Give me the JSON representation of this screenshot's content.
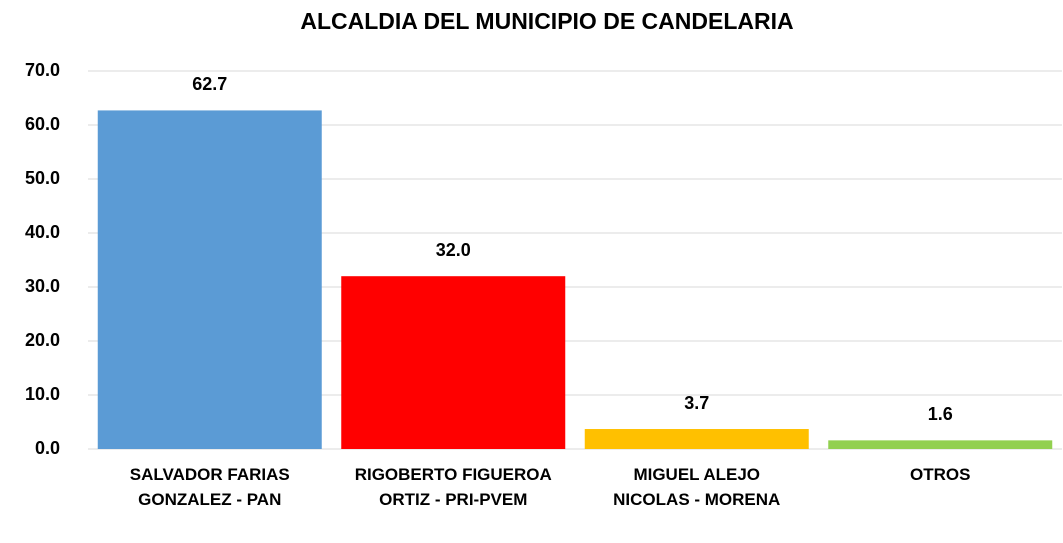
{
  "chart_data": {
    "type": "bar",
    "title": "ALCALDIA DEL MUNICIPIO DE CANDELARIA",
    "categories": [
      "SALVADOR FARIAS GONZALEZ - PAN",
      "RIGOBERTO FIGUEROA ORTIZ - PRI-PVEM",
      "MIGUEL ALEJO NICOLAS - MORENA",
      "OTROS"
    ],
    "values": [
      62.7,
      32.0,
      3.7,
      1.6
    ],
    "value_labels": [
      "62.7",
      "32.0",
      "3.7",
      "1.6"
    ],
    "colors": [
      "#5b9bd5",
      "#ff0000",
      "#ffc000",
      "#92d050"
    ],
    "ylim": [
      0,
      70
    ],
    "yticks": [
      {
        "value": 0,
        "label": "0.0"
      },
      {
        "value": 10,
        "label": "10.0"
      },
      {
        "value": 20,
        "label": "20.0"
      },
      {
        "value": 30,
        "label": "30.0"
      },
      {
        "value": 40,
        "label": "40.0"
      },
      {
        "value": 50,
        "label": "50.0"
      },
      {
        "value": 60,
        "label": "60.0"
      },
      {
        "value": 70,
        "label": "70.0"
      }
    ],
    "grid": true
  }
}
